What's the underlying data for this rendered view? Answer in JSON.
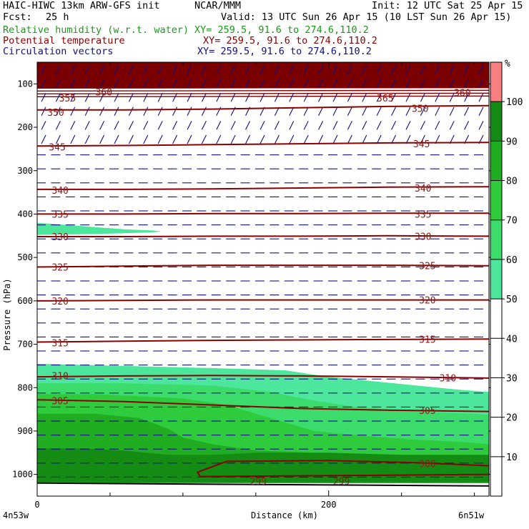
{
  "header": {
    "model": "HAIC-HIWC 13km ARW-GFS init",
    "org": "NCAR/MMM",
    "init": "Init: 12 UTC Sat 25 Apr 15",
    "fcst_label": "Fcst:",
    "fcst_value": "25 h",
    "valid": "Valid: 13 UTC Sun 26 Apr 15 (10 LST Sun 26 Apr 15)",
    "field1": "Relative humidity (w.r.t. water)",
    "field1_xy": "XY= 259.5, 91.6 to 274.6,110.2",
    "field2": "Potential temperature",
    "field2_xy": "XY= 259.5, 91.6 to 274.6,110.2",
    "field3": "Circulation vectors",
    "field3_xy": "XY= 259.5, 91.6 to 274.6,110.2"
  },
  "colors": {
    "rh_green": "#1a9a1a",
    "theta_red": "#8b0000",
    "vector_blue": "#101080",
    "rh_50": "#4ce69c",
    "rh_60": "#3cdc6c",
    "rh_70": "#2ecc3c",
    "rh_80": "#21ad21",
    "rh_90": "#148c14",
    "rh_100": "#f88080"
  },
  "chart_data": {
    "type": "heatmap",
    "xlabel": "Distance (km)",
    "ylabel": "Pressure (hPa)",
    "xlim": [
      0,
      310
    ],
    "ylim": [
      1050,
      50
    ],
    "x_ticks": [
      0,
      200
    ],
    "y_ticks": [
      100,
      200,
      300,
      400,
      500,
      600,
      700,
      800,
      900,
      1000
    ],
    "left_endpoint_label": "4n53w",
    "right_endpoint_label": "6n51w",
    "colorbar": {
      "unit": "%",
      "levels": [
        10,
        20,
        30,
        40,
        50,
        60,
        70,
        80,
        90,
        100
      ],
      "filled_levels": [
        50,
        60,
        70,
        80,
        90,
        100
      ]
    },
    "rh_regions": [
      {
        "level": 50,
        "boundary": [
          [
            0,
            420
          ],
          [
            20,
            425
          ],
          [
            40,
            430
          ],
          [
            60,
            435
          ],
          [
            80,
            438
          ],
          [
            85,
            440
          ],
          [
            80,
            442
          ],
          [
            60,
            444
          ],
          [
            40,
            446
          ],
          [
            20,
            447
          ],
          [
            0,
            448
          ]
        ]
      },
      {
        "level": 50,
        "boundary": [
          [
            0,
            745
          ],
          [
            60,
            750
          ],
          [
            120,
            755
          ],
          [
            170,
            760
          ],
          [
            200,
            775
          ],
          [
            230,
            785
          ],
          [
            260,
            795
          ],
          [
            290,
            805
          ],
          [
            310,
            810
          ],
          [
            310,
            1020
          ],
          [
            0,
            1020
          ]
        ]
      },
      {
        "level": 60,
        "boundary": [
          [
            0,
            790
          ],
          [
            60,
            790
          ],
          [
            120,
            795
          ],
          [
            160,
            810
          ],
          [
            190,
            830
          ],
          [
            220,
            845
          ],
          [
            260,
            855
          ],
          [
            300,
            860
          ],
          [
            310,
            862
          ],
          [
            310,
            1020
          ],
          [
            0,
            1020
          ]
        ]
      },
      {
        "level": 70,
        "boundary": [
          [
            0,
            815
          ],
          [
            40,
            815
          ],
          [
            70,
            820
          ],
          [
            100,
            825
          ],
          [
            130,
            840
          ],
          [
            150,
            860
          ],
          [
            170,
            880
          ],
          [
            190,
            900
          ],
          [
            220,
            910
          ],
          [
            260,
            920
          ],
          [
            290,
            925
          ],
          [
            310,
            930
          ],
          [
            310,
            1020
          ],
          [
            0,
            1020
          ]
        ]
      },
      {
        "level": 80,
        "boundary": [
          [
            0,
            860
          ],
          [
            40,
            860
          ],
          [
            70,
            870
          ],
          [
            90,
            895
          ],
          [
            100,
            915
          ],
          [
            120,
            930
          ],
          [
            150,
            945
          ],
          [
            190,
            950
          ],
          [
            250,
            955
          ],
          [
            310,
            958
          ],
          [
            310,
            1020
          ],
          [
            0,
            1020
          ]
        ]
      },
      {
        "level": 90,
        "boundary": [
          [
            0,
            940
          ],
          [
            30,
            940
          ],
          [
            60,
            945
          ],
          [
            90,
            955
          ],
          [
            120,
            955
          ],
          [
            150,
            950
          ],
          [
            200,
            950
          ],
          [
            250,
            955
          ],
          [
            310,
            955
          ],
          [
            310,
            1018
          ],
          [
            0,
            1018
          ]
        ]
      }
    ],
    "theta_contours": [
      {
        "value": 350,
        "pressure": [
          160,
          160,
          158,
          155,
          152,
          150
        ]
      },
      {
        "value": 345,
        "pressure": [
          243,
          242,
          240,
          238,
          236,
          235
        ]
      },
      {
        "value": 340,
        "pressure": [
          343,
          343,
          342,
          340,
          338,
          337
        ]
      },
      {
        "value": 335,
        "pressure": [
          400,
          400,
          399,
          399,
          398,
          398
        ]
      },
      {
        "value": 330,
        "pressure": [
          452,
          452,
          451,
          451,
          450,
          451
        ]
      },
      {
        "value": 325,
        "pressure": [
          522,
          520,
          518,
          518,
          518,
          519
        ]
      },
      {
        "value": 320,
        "pressure": [
          600,
          599,
          598,
          598,
          598,
          598
        ]
      },
      {
        "value": 315,
        "pressure": [
          695,
          693,
          691,
          690,
          689,
          688
        ]
      },
      {
        "value": 310,
        "pressure": [
          775,
          773,
          772,
          773,
          775,
          778
        ]
      },
      {
        "value": 305,
        "pressure": [
          828,
          832,
          840,
          848,
          852,
          855
        ]
      }
    ],
    "contour_x": [
      0,
      60,
      120,
      180,
      240,
      310
    ],
    "contour_labels": [
      {
        "text": "355",
        "x": 15,
        "p": 132
      },
      {
        "text": "360",
        "x": 40,
        "p": 118
      },
      {
        "text": "350",
        "x": 7,
        "p": 165
      },
      {
        "text": "345",
        "x": 8,
        "p": 245
      },
      {
        "text": "340",
        "x": 10,
        "p": 345
      },
      {
        "text": "335",
        "x": 10,
        "p": 400
      },
      {
        "text": "330",
        "x": 10,
        "p": 452
      },
      {
        "text": "325",
        "x": 10,
        "p": 522
      },
      {
        "text": "320",
        "x": 10,
        "p": 600
      },
      {
        "text": "315",
        "x": 10,
        "p": 697
      },
      {
        "text": "310",
        "x": 10,
        "p": 772
      },
      {
        "text": "305",
        "x": 10,
        "p": 830
      },
      {
        "text": "365",
        "x": 233,
        "p": 132
      },
      {
        "text": "360",
        "x": 286,
        "p": 120
      },
      {
        "text": "350",
        "x": 257,
        "p": 156
      },
      {
        "text": "345",
        "x": 258,
        "p": 238
      },
      {
        "text": "340",
        "x": 259,
        "p": 340
      },
      {
        "text": "335",
        "x": 259,
        "p": 400
      },
      {
        "text": "330",
        "x": 259,
        "p": 451
      },
      {
        "text": "325",
        "x": 262,
        "p": 519
      },
      {
        "text": "320",
        "x": 262,
        "p": 598
      },
      {
        "text": "315",
        "x": 262,
        "p": 688
      },
      {
        "text": "310",
        "x": 276,
        "p": 777
      },
      {
        "text": "305",
        "x": 262,
        "p": 852
      },
      {
        "text": "300",
        "x": 262,
        "p": 975
      },
      {
        "text": "299",
        "x": 146,
        "p": 1015
      },
      {
        "text": "299",
        "x": 203,
        "p": 1015
      }
    ],
    "theta_300_loop": [
      [
        110,
        995
      ],
      [
        130,
        970
      ],
      [
        200,
        968
      ],
      [
        260,
        973
      ],
      [
        310,
        980
      ]
    ],
    "stratosphere_top_p": 100,
    "terrain_p": 1020
  }
}
